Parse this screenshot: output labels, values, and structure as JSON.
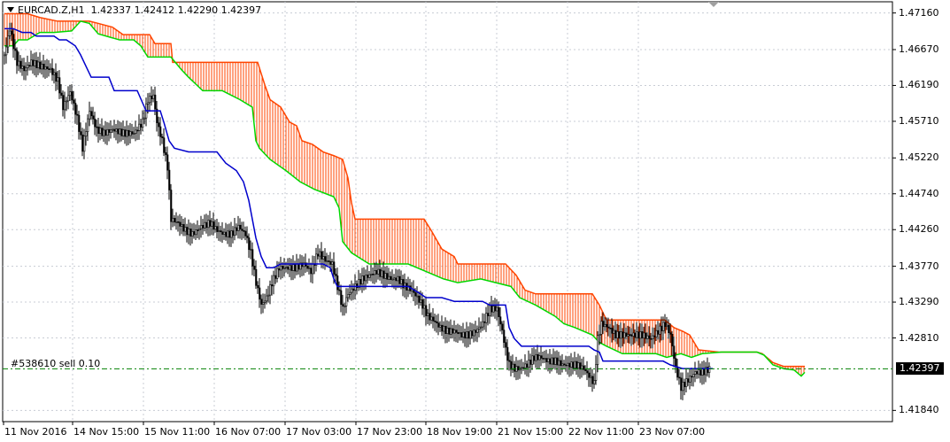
{
  "header": {
    "symbol": "EURCAD.Z,H1",
    "open": "1.42337",
    "high": "1.42412",
    "low": "1.42290",
    "close": "1.42397"
  },
  "order_line": {
    "label": "#538610 sell 0.10",
    "price": 1.42397
  },
  "current_price_label": "1.42397",
  "colors": {
    "background": "#ffffff",
    "grid": "#c8ccd4",
    "candle": "#000000",
    "kijun": "#0000cc",
    "cloud_bearish": "#ff4500",
    "cloud_bullish": "#00d800",
    "order_line": "#008000"
  },
  "chart_data": {
    "type": "candlestick",
    "title": "EURCAD.Z,H1",
    "y_axis_ticks": [
      "1.47160",
      "1.46670",
      "1.46190",
      "1.45710",
      "1.45220",
      "1.44740",
      "1.44260",
      "1.43770",
      "1.43290",
      "1.42810",
      "1.42397",
      "1.41840"
    ],
    "x_axis_ticks": [
      "11 Nov 2016",
      "14 Nov 15:00",
      "15 Nov 11:00",
      "16 Nov 07:00",
      "17 Nov 03:00",
      "17 Nov 23:00",
      "18 Nov 19:00",
      "21 Nov 15:00",
      "22 Nov 11:00",
      "23 Nov 07:00"
    ],
    "ylim": [
      1.4169,
      1.4731
    ],
    "indicators": [
      "Ichimoku Kinko Hyo (Kijun-sen, Senkou Span A, Senkou Span B)"
    ],
    "close_path": [
      [
        0,
        1.466
      ],
      [
        6,
        1.4695
      ],
      [
        14,
        1.465
      ],
      [
        22,
        1.464
      ],
      [
        30,
        1.465
      ],
      [
        40,
        1.4645
      ],
      [
        52,
        1.464
      ],
      [
        60,
        1.4625
      ],
      [
        66,
        1.459
      ],
      [
        74,
        1.461
      ],
      [
        82,
        1.4575
      ],
      [
        88,
        1.4535
      ],
      [
        96,
        1.4585
      ],
      [
        104,
        1.456
      ],
      [
        112,
        1.4555
      ],
      [
        122,
        1.456
      ],
      [
        134,
        1.4555
      ],
      [
        146,
        1.4555
      ],
      [
        156,
        1.457
      ],
      [
        162,
        1.46
      ],
      [
        168,
        1.4605
      ],
      [
        172,
        1.457
      ],
      [
        178,
        1.4545
      ],
      [
        184,
        1.451
      ],
      [
        188,
        1.444
      ],
      [
        196,
        1.4435
      ],
      [
        204,
        1.4425
      ],
      [
        212,
        1.442
      ],
      [
        222,
        1.443
      ],
      [
        232,
        1.4435
      ],
      [
        240,
        1.4425
      ],
      [
        248,
        1.442
      ],
      [
        256,
        1.442
      ],
      [
        264,
        1.443
      ],
      [
        272,
        1.442
      ],
      [
        278,
        1.4395
      ],
      [
        284,
        1.4355
      ],
      [
        290,
        1.4325
      ],
      [
        296,
        1.4335
      ],
      [
        302,
        1.4355
      ],
      [
        310,
        1.4375
      ],
      [
        318,
        1.4375
      ],
      [
        328,
        1.4375
      ],
      [
        338,
        1.438
      ],
      [
        346,
        1.437
      ],
      [
        354,
        1.4395
      ],
      [
        362,
        1.4385
      ],
      [
        370,
        1.438
      ],
      [
        376,
        1.435
      ],
      [
        382,
        1.432
      ],
      [
        388,
        1.434
      ],
      [
        396,
        1.435
      ],
      [
        404,
        1.436
      ],
      [
        412,
        1.4365
      ],
      [
        420,
        1.437
      ],
      [
        428,
        1.4365
      ],
      [
        436,
        1.436
      ],
      [
        444,
        1.436
      ],
      [
        452,
        1.435
      ],
      [
        460,
        1.4345
      ],
      [
        466,
        1.4335
      ],
      [
        472,
        1.4325
      ],
      [
        478,
        1.431
      ],
      [
        484,
        1.4305
      ],
      [
        492,
        1.4295
      ],
      [
        500,
        1.429
      ],
      [
        508,
        1.429
      ],
      [
        516,
        1.4285
      ],
      [
        524,
        1.4285
      ],
      [
        532,
        1.429
      ],
      [
        540,
        1.43
      ],
      [
        548,
        1.432
      ],
      [
        556,
        1.432
      ],
      [
        562,
        1.429
      ],
      [
        566,
        1.4265
      ],
      [
        570,
        1.4245
      ],
      [
        576,
        1.424
      ],
      [
        582,
        1.424
      ],
      [
        590,
        1.4245
      ],
      [
        598,
        1.4255
      ],
      [
        606,
        1.4255
      ],
      [
        614,
        1.425
      ],
      [
        622,
        1.425
      ],
      [
        630,
        1.4245
      ],
      [
        638,
        1.4245
      ],
      [
        646,
        1.4245
      ],
      [
        654,
        1.424
      ],
      [
        660,
        1.423
      ],
      [
        666,
        1.422
      ],
      [
        670,
        1.428
      ],
      [
        674,
        1.43
      ],
      [
        682,
        1.4295
      ],
      [
        690,
        1.4285
      ],
      [
        700,
        1.4285
      ],
      [
        710,
        1.4285
      ],
      [
        720,
        1.4285
      ],
      [
        730,
        1.428
      ],
      [
        738,
        1.429
      ],
      [
        746,
        1.43
      ],
      [
        752,
        1.4285
      ],
      [
        758,
        1.424
      ],
      [
        764,
        1.4215
      ],
      [
        772,
        1.4225
      ],
      [
        780,
        1.4235
      ],
      [
        788,
        1.4235
      ],
      [
        796,
        1.424
      ]
    ],
    "kijun": [
      [
        0,
        1.4695
      ],
      [
        10,
        1.4695
      ],
      [
        20,
        1.469
      ],
      [
        30,
        1.469
      ],
      [
        36,
        1.4685
      ],
      [
        56,
        1.4685
      ],
      [
        62,
        1.468
      ],
      [
        70,
        1.468
      ],
      [
        80,
        1.4672
      ],
      [
        86,
        1.466
      ],
      [
        92,
        1.4645
      ],
      [
        98,
        1.463
      ],
      [
        118,
        1.463
      ],
      [
        124,
        1.4612
      ],
      [
        150,
        1.4612
      ],
      [
        160,
        1.4585
      ],
      [
        176,
        1.4585
      ],
      [
        180,
        1.457
      ],
      [
        186,
        1.4545
      ],
      [
        192,
        1.4535
      ],
      [
        208,
        1.453
      ],
      [
        240,
        1.453
      ],
      [
        250,
        1.4515
      ],
      [
        262,
        1.4505
      ],
      [
        270,
        1.449
      ],
      [
        276,
        1.4465
      ],
      [
        280,
        1.444
      ],
      [
        284,
        1.4415
      ],
      [
        290,
        1.439
      ],
      [
        296,
        1.4375
      ],
      [
        304,
        1.4375
      ],
      [
        312,
        1.438
      ],
      [
        360,
        1.438
      ],
      [
        368,
        1.4375
      ],
      [
        372,
        1.436
      ],
      [
        376,
        1.435
      ],
      [
        400,
        1.435
      ],
      [
        420,
        1.435
      ],
      [
        456,
        1.435
      ],
      [
        470,
        1.434
      ],
      [
        476,
        1.4335
      ],
      [
        494,
        1.4335
      ],
      [
        508,
        1.433
      ],
      [
        540,
        1.433
      ],
      [
        548,
        1.4325
      ],
      [
        566,
        1.4325
      ],
      [
        570,
        1.4295
      ],
      [
        576,
        1.428
      ],
      [
        584,
        1.427
      ],
      [
        600,
        1.427
      ],
      [
        630,
        1.427
      ],
      [
        660,
        1.427
      ],
      [
        666,
        1.4265
      ],
      [
        672,
        1.4262
      ],
      [
        676,
        1.425
      ],
      [
        744,
        1.425
      ],
      [
        752,
        1.4245
      ],
      [
        766,
        1.424
      ],
      [
        800,
        1.424
      ]
    ],
    "span_a": [
      [
        0,
        1.4672
      ],
      [
        10,
        1.4672
      ],
      [
        16,
        1.468
      ],
      [
        26,
        1.468
      ],
      [
        40,
        1.469
      ],
      [
        56,
        1.469
      ],
      [
        76,
        1.4692
      ],
      [
        86,
        1.4705
      ],
      [
        96,
        1.4702
      ],
      [
        106,
        1.4688
      ],
      [
        130,
        1.468
      ],
      [
        146,
        1.468
      ],
      [
        154,
        1.4672
      ],
      [
        162,
        1.4657
      ],
      [
        188,
        1.4657
      ],
      [
        200,
        1.464
      ],
      [
        208,
        1.463
      ],
      [
        224,
        1.4612
      ],
      [
        246,
        1.4612
      ],
      [
        266,
        1.46
      ],
      [
        280,
        1.459
      ],
      [
        284,
        1.4545
      ],
      [
        288,
        1.4535
      ],
      [
        300,
        1.452
      ],
      [
        318,
        1.4505
      ],
      [
        334,
        1.449
      ],
      [
        350,
        1.448
      ],
      [
        372,
        1.447
      ],
      [
        378,
        1.4455
      ],
      [
        382,
        1.441
      ],
      [
        392,
        1.4395
      ],
      [
        412,
        1.438
      ],
      [
        432,
        1.438
      ],
      [
        456,
        1.438
      ],
      [
        476,
        1.437
      ],
      [
        496,
        1.436
      ],
      [
        512,
        1.4355
      ],
      [
        538,
        1.436
      ],
      [
        572,
        1.435
      ],
      [
        582,
        1.4335
      ],
      [
        600,
        1.4325
      ],
      [
        622,
        1.431
      ],
      [
        632,
        1.43
      ],
      [
        644,
        1.4295
      ],
      [
        664,
        1.4285
      ],
      [
        672,
        1.4275
      ],
      [
        680,
        1.427
      ],
      [
        698,
        1.426
      ],
      [
        712,
        1.426
      ],
      [
        736,
        1.426
      ],
      [
        748,
        1.4255
      ],
      [
        764,
        1.426
      ],
      [
        776,
        1.4255
      ],
      [
        788,
        1.426
      ],
      [
        810,
        1.4262
      ],
      [
        850,
        1.4262
      ],
      [
        858,
        1.4258
      ],
      [
        868,
        1.4245
      ],
      [
        880,
        1.424
      ],
      [
        892,
        1.4238
      ],
      [
        900,
        1.423
      ],
      [
        904,
        1.4235
      ]
    ],
    "span_b": [
      [
        0,
        1.4715
      ],
      [
        26,
        1.4715
      ],
      [
        40,
        1.471
      ],
      [
        60,
        1.4705
      ],
      [
        96,
        1.4705
      ],
      [
        106,
        1.4702
      ],
      [
        122,
        1.4697
      ],
      [
        134,
        1.4687
      ],
      [
        164,
        1.4687
      ],
      [
        170,
        1.4675
      ],
      [
        188,
        1.4675
      ],
      [
        190,
        1.465
      ],
      [
        286,
        1.465
      ],
      [
        294,
        1.462
      ],
      [
        300,
        1.46
      ],
      [
        312,
        1.459
      ],
      [
        322,
        1.457
      ],
      [
        330,
        1.4565
      ],
      [
        336,
        1.4545
      ],
      [
        348,
        1.454
      ],
      [
        360,
        1.453
      ],
      [
        372,
        1.4525
      ],
      [
        382,
        1.452
      ],
      [
        388,
        1.4495
      ],
      [
        392,
        1.4462
      ],
      [
        396,
        1.444
      ],
      [
        474,
        1.444
      ],
      [
        482,
        1.4425
      ],
      [
        494,
        1.44
      ],
      [
        508,
        1.439
      ],
      [
        512,
        1.438
      ],
      [
        548,
        1.438
      ],
      [
        566,
        1.438
      ],
      [
        578,
        1.4365
      ],
      [
        588,
        1.4345
      ],
      [
        600,
        1.434
      ],
      [
        664,
        1.434
      ],
      [
        672,
        1.4325
      ],
      [
        680,
        1.4305
      ],
      [
        746,
        1.4305
      ],
      [
        756,
        1.4295
      ],
      [
        766,
        1.429
      ],
      [
        774,
        1.4285
      ],
      [
        784,
        1.4265
      ],
      [
        808,
        1.4262
      ],
      [
        850,
        1.4262
      ],
      [
        856,
        1.426
      ],
      [
        868,
        1.4248
      ],
      [
        880,
        1.4243
      ],
      [
        904,
        1.4243
      ]
    ]
  }
}
